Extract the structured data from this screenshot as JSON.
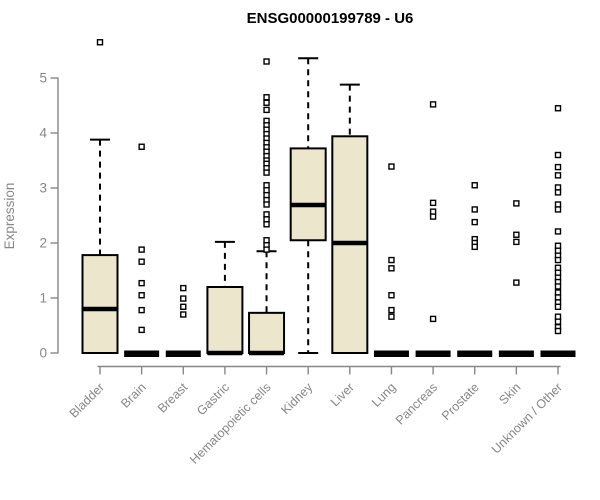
{
  "title": "ENSG00000199789 - U6",
  "chart_data": {
    "type": "boxplot",
    "title": "ENSG00000199789 - U6",
    "xlabel": "",
    "ylabel": "Expression",
    "ylim": [
      0,
      5
    ],
    "yticks": [
      0,
      1,
      2,
      3,
      4,
      5
    ],
    "grid": false,
    "legend": "none",
    "categories": [
      "Bladder",
      "Brain",
      "Breast",
      "Gastric",
      "Hematopoietic cells",
      "Kidney",
      "Liver",
      "Lung",
      "Pancreas",
      "Prostate",
      "Skin",
      "Unknown / Other"
    ],
    "boxes": [
      {
        "category": "Bladder",
        "q1": 0,
        "median": 0.8,
        "q3": 1.78,
        "whisker_low": 0,
        "whisker_high": 3.88,
        "outliers": [
          5.65
        ]
      },
      {
        "category": "Brain",
        "q1": 0,
        "median": 0,
        "q3": 0,
        "whisker_low": 0,
        "whisker_high": 0,
        "outliers": [
          3.75,
          1.88,
          1.66,
          1.27,
          1.05,
          0.78,
          0.42
        ]
      },
      {
        "category": "Breast",
        "q1": 0,
        "median": 0,
        "q3": 0,
        "whisker_low": 0,
        "whisker_high": 0,
        "outliers": [
          1.18,
          0.99,
          0.84,
          0.7
        ]
      },
      {
        "category": "Gastric",
        "q1": 0,
        "median": 0,
        "q3": 1.2,
        "whisker_low": 0,
        "whisker_high": 2.02,
        "outliers": []
      },
      {
        "category": "Hematopoietic cells",
        "q1": 0,
        "median": 0,
        "q3": 0.73,
        "whisker_low": 0,
        "whisker_high": 1.85,
        "outliers": [
          5.3,
          4.65,
          4.55,
          4.42,
          4.22,
          4.14,
          4.06,
          3.98,
          3.9,
          3.82,
          3.74,
          3.66,
          3.58,
          3.5,
          3.44,
          3.36,
          3.28,
          3.05,
          2.96,
          2.87,
          2.78,
          2.7,
          2.52,
          2.43,
          2.34,
          2.05,
          1.96,
          1.88
        ]
      },
      {
        "category": "Kidney",
        "q1": 2.05,
        "median": 2.69,
        "q3": 3.72,
        "whisker_low": 0,
        "whisker_high": 5.36,
        "outliers": []
      },
      {
        "category": "Liver",
        "q1": 0,
        "median": 2.0,
        "q3": 3.94,
        "whisker_low": 0,
        "whisker_high": 4.88,
        "outliers": []
      },
      {
        "category": "Lung",
        "q1": 0,
        "median": 0,
        "q3": 0,
        "whisker_low": 0,
        "whisker_high": 0,
        "outliers": [
          3.39,
          1.69,
          1.54,
          1.05,
          0.78,
          0.66
        ]
      },
      {
        "category": "Pancreas",
        "q1": 0,
        "median": 0,
        "q3": 0,
        "whisker_low": 0,
        "whisker_high": 0,
        "outliers": [
          4.52,
          2.73,
          2.57,
          2.48,
          0.62
        ]
      },
      {
        "category": "Prostate",
        "q1": 0,
        "median": 0,
        "q3": 0,
        "whisker_low": 0,
        "whisker_high": 0,
        "outliers": [
          3.05,
          2.61,
          2.38,
          2.07,
          2.0,
          1.93
        ]
      },
      {
        "category": "Skin",
        "q1": 0,
        "median": 0,
        "q3": 0,
        "whisker_low": 0,
        "whisker_high": 0,
        "outliers": [
          2.72,
          2.15,
          2.02,
          1.28
        ]
      },
      {
        "category": "Unknown / Other",
        "q1": 0,
        "median": 0,
        "q3": 0,
        "whisker_low": 0,
        "whisker_high": 0,
        "outliers": [
          4.45,
          3.6,
          3.38,
          3.23,
          3.01,
          2.92,
          2.7,
          2.61,
          2.21,
          1.95,
          1.86,
          1.77,
          1.69,
          1.55,
          1.46,
          1.37,
          1.29,
          1.21,
          1.1,
          1.01,
          0.92,
          0.84,
          0.66,
          0.57,
          0.47,
          0.4
        ]
      }
    ],
    "colors": {
      "box_fill": "#ece6cd",
      "box_border": "#000000",
      "median": "#000000",
      "whisker": "#000000",
      "outlier": "#000000",
      "axis": "#878787",
      "tick_label": "#878787",
      "title": "#000000",
      "background": "#ffffff"
    }
  }
}
